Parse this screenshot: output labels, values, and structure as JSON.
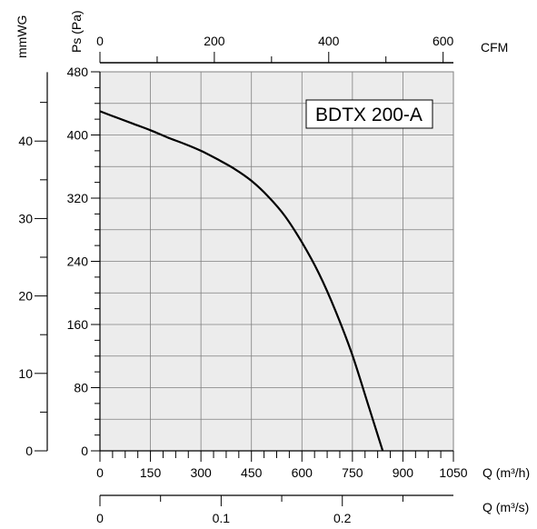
{
  "chart_data": {
    "type": "line",
    "title": "BDTX 200-A",
    "x_primary": {
      "label": "Q (m³/h)",
      "range": [
        0,
        1050
      ],
      "ticks": [
        0,
        150,
        300,
        450,
        600,
        750,
        900,
        1050
      ],
      "tick_labels": [
        "0",
        "150",
        "300",
        "450",
        "600",
        "750",
        "900",
        "1050"
      ]
    },
    "x_top": {
      "label": "CFM",
      "range": [
        0,
        600
      ],
      "tick_labels": [
        "0",
        "200",
        "400",
        "600"
      ]
    },
    "x_bottom": {
      "label": "Q (m³/s)",
      "range": [
        0,
        0.2917
      ],
      "tick_labels": [
        "0",
        "0.1",
        "0.2"
      ]
    },
    "y_primary": {
      "label": "Ps (Pa)",
      "range": [
        0,
        480
      ],
      "ticks": [
        0,
        80,
        160,
        240,
        320,
        400,
        480
      ],
      "tick_labels": [
        "0",
        "80",
        "160",
        "240",
        "320",
        "400",
        "480"
      ]
    },
    "y_secondary": {
      "label": "mmWG",
      "range": [
        0,
        48.9
      ],
      "tick_labels": [
        "0",
        "10",
        "20",
        "30",
        "40"
      ]
    },
    "grid": true,
    "series": [
      {
        "x": [
          0,
          50,
          100,
          150,
          200,
          250,
          300,
          350,
          400,
          450,
          500,
          550,
          600,
          650,
          700,
          750,
          800,
          840
        ],
        "y": [
          430,
          422,
          414,
          406,
          397,
          389,
          380,
          369,
          357,
          342,
          322,
          297,
          264,
          225,
          177,
          121,
          54,
          0
        ]
      }
    ]
  },
  "colors": {
    "plot_background": "#ececec",
    "grid": "#808080",
    "curve": "#000000"
  }
}
